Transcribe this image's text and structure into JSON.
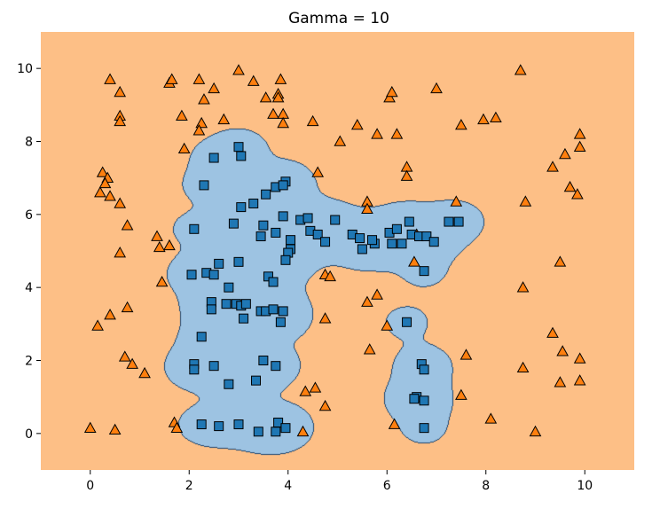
{
  "chart_data": {
    "type": "scatter",
    "title": "Gamma = 10",
    "xlabel": "",
    "ylabel": "",
    "xlim": [
      -1,
      11
    ],
    "ylim": [
      -1,
      11
    ],
    "x_ticks": [
      0,
      2,
      4,
      6,
      8,
      10
    ],
    "y_ticks": [
      0,
      2,
      4,
      6,
      8,
      10
    ],
    "grid": false,
    "colors": {
      "background_region": "#fdbf86",
      "class_region": "#9dc3e2",
      "class0_marker": "#ff7f0e",
      "class1_marker": "#1f77b4"
    },
    "series": [
      {
        "marker": "triangle",
        "color": "#ff7f0e",
        "points": [
          [
            0.4,
            9.7
          ],
          [
            0.6,
            9.35
          ],
          [
            0.6,
            8.7
          ],
          [
            0.6,
            8.55
          ],
          [
            0.25,
            7.15
          ],
          [
            0.35,
            7.0
          ],
          [
            0.3,
            6.85
          ],
          [
            0.2,
            6.6
          ],
          [
            0.4,
            6.5
          ],
          [
            0.6,
            6.3
          ],
          [
            0.75,
            5.7
          ],
          [
            0.6,
            4.95
          ],
          [
            0.75,
            3.45
          ],
          [
            0.4,
            3.25
          ],
          [
            0.15,
            2.95
          ],
          [
            0.7,
            2.1
          ],
          [
            0.85,
            1.9
          ],
          [
            1.1,
            1.65
          ],
          [
            0.0,
            0.15
          ],
          [
            0.5,
            0.1
          ],
          [
            1.6,
            9.6
          ],
          [
            1.65,
            9.7
          ],
          [
            2.2,
            9.7
          ],
          [
            2.5,
            9.45
          ],
          [
            2.3,
            9.15
          ],
          [
            1.85,
            8.7
          ],
          [
            2.25,
            8.5
          ],
          [
            2.2,
            8.3
          ],
          [
            1.9,
            7.8
          ],
          [
            2.7,
            8.6
          ],
          [
            3.0,
            9.95
          ],
          [
            3.3,
            9.65
          ],
          [
            3.55,
            9.2
          ],
          [
            3.8,
            9.3
          ],
          [
            3.85,
            9.7
          ],
          [
            3.8,
            9.2
          ],
          [
            3.7,
            8.75
          ],
          [
            3.9,
            8.75
          ],
          [
            3.9,
            8.5
          ],
          [
            1.35,
            5.4
          ],
          [
            1.6,
            5.15
          ],
          [
            1.4,
            5.1
          ],
          [
            1.45,
            4.15
          ],
          [
            1.7,
            0.3
          ],
          [
            1.75,
            0.15
          ],
          [
            4.5,
            8.55
          ],
          [
            5.05,
            8.0
          ],
          [
            5.4,
            8.45
          ],
          [
            5.8,
            8.2
          ],
          [
            6.2,
            8.2
          ],
          [
            6.4,
            7.3
          ],
          [
            6.4,
            7.05
          ],
          [
            6.05,
            9.2
          ],
          [
            6.1,
            9.35
          ],
          [
            4.6,
            7.15
          ],
          [
            5.6,
            6.35
          ],
          [
            5.6,
            6.15
          ],
          [
            4.75,
            4.35
          ],
          [
            4.85,
            4.3
          ],
          [
            4.75,
            3.15
          ],
          [
            5.6,
            3.6
          ],
          [
            5.8,
            3.8
          ],
          [
            6.0,
            2.95
          ],
          [
            5.65,
            2.3
          ],
          [
            6.55,
            4.7
          ],
          [
            6.6,
            5.45
          ],
          [
            4.35,
            1.15
          ],
          [
            4.55,
            1.25
          ],
          [
            4.75,
            0.75
          ],
          [
            4.3,
            0.05
          ],
          [
            6.15,
            0.25
          ],
          [
            7.0,
            9.45
          ],
          [
            7.5,
            8.45
          ],
          [
            7.4,
            6.35
          ],
          [
            7.95,
            8.6
          ],
          [
            8.2,
            8.65
          ],
          [
            8.7,
            9.95
          ],
          [
            8.8,
            6.35
          ],
          [
            8.75,
            4.0
          ],
          [
            8.75,
            1.8
          ],
          [
            8.1,
            0.4
          ],
          [
            7.6,
            2.15
          ],
          [
            7.5,
            1.05
          ],
          [
            9.0,
            0.05
          ],
          [
            9.35,
            7.3
          ],
          [
            9.6,
            7.65
          ],
          [
            9.9,
            8.2
          ],
          [
            9.9,
            7.85
          ],
          [
            9.7,
            6.75
          ],
          [
            9.85,
            6.55
          ],
          [
            9.5,
            4.7
          ],
          [
            9.35,
            2.75
          ],
          [
            9.55,
            2.25
          ],
          [
            9.5,
            1.4
          ],
          [
            9.9,
            2.05
          ],
          [
            9.9,
            1.45
          ]
        ]
      },
      {
        "marker": "square",
        "color": "#1f77b4",
        "points": [
          [
            2.5,
            7.55
          ],
          [
            3.0,
            7.85
          ],
          [
            3.05,
            7.6
          ],
          [
            2.3,
            6.8
          ],
          [
            2.1,
            5.6
          ],
          [
            2.9,
            5.75
          ],
          [
            3.05,
            6.2
          ],
          [
            3.3,
            6.3
          ],
          [
            3.55,
            6.55
          ],
          [
            3.75,
            6.75
          ],
          [
            3.95,
            6.9
          ],
          [
            3.9,
            6.8
          ],
          [
            3.5,
            5.7
          ],
          [
            3.75,
            5.5
          ],
          [
            3.9,
            5.95
          ],
          [
            3.45,
            5.4
          ],
          [
            4.05,
            5.3
          ],
          [
            4.05,
            5.05
          ],
          [
            4.0,
            4.95
          ],
          [
            3.95,
            4.75
          ],
          [
            3.6,
            4.3
          ],
          [
            3.7,
            4.15
          ],
          [
            4.25,
            5.85
          ],
          [
            4.4,
            5.9
          ],
          [
            4.45,
            5.55
          ],
          [
            4.6,
            5.45
          ],
          [
            4.75,
            5.25
          ],
          [
            4.95,
            5.85
          ],
          [
            5.3,
            5.45
          ],
          [
            5.5,
            5.05
          ],
          [
            5.45,
            5.35
          ],
          [
            5.75,
            5.2
          ],
          [
            5.7,
            5.3
          ],
          [
            6.05,
            5.5
          ],
          [
            6.1,
            5.2
          ],
          [
            6.3,
            5.2
          ],
          [
            6.2,
            5.6
          ],
          [
            6.45,
            5.8
          ],
          [
            6.5,
            5.45
          ],
          [
            6.65,
            5.4
          ],
          [
            6.8,
            5.4
          ],
          [
            6.95,
            5.25
          ],
          [
            7.25,
            5.8
          ],
          [
            7.45,
            5.8
          ],
          [
            6.75,
            4.45
          ],
          [
            2.05,
            4.35
          ],
          [
            2.35,
            4.4
          ],
          [
            2.5,
            4.35
          ],
          [
            2.6,
            4.65
          ],
          [
            3.0,
            4.7
          ],
          [
            2.8,
            4.0
          ],
          [
            2.45,
            3.6
          ],
          [
            2.45,
            3.4
          ],
          [
            2.75,
            3.55
          ],
          [
            2.95,
            3.55
          ],
          [
            3.05,
            3.5
          ],
          [
            3.15,
            3.55
          ],
          [
            3.1,
            3.15
          ],
          [
            3.45,
            3.35
          ],
          [
            3.55,
            3.35
          ],
          [
            3.7,
            3.4
          ],
          [
            3.9,
            3.35
          ],
          [
            3.85,
            3.05
          ],
          [
            2.25,
            2.65
          ],
          [
            2.1,
            1.9
          ],
          [
            2.1,
            1.75
          ],
          [
            2.5,
            1.85
          ],
          [
            2.8,
            1.35
          ],
          [
            3.35,
            1.45
          ],
          [
            3.5,
            2.0
          ],
          [
            3.75,
            1.85
          ],
          [
            2.25,
            0.25
          ],
          [
            2.6,
            0.2
          ],
          [
            3.0,
            0.25
          ],
          [
            3.4,
            0.05
          ],
          [
            3.75,
            0.05
          ],
          [
            3.8,
            0.3
          ],
          [
            3.95,
            0.15
          ],
          [
            6.4,
            3.05
          ],
          [
            6.7,
            1.9
          ],
          [
            6.75,
            1.75
          ],
          [
            6.6,
            1.0
          ],
          [
            6.55,
            0.95
          ],
          [
            6.75,
            0.9
          ],
          [
            6.75,
            0.15
          ]
        ]
      }
    ]
  }
}
